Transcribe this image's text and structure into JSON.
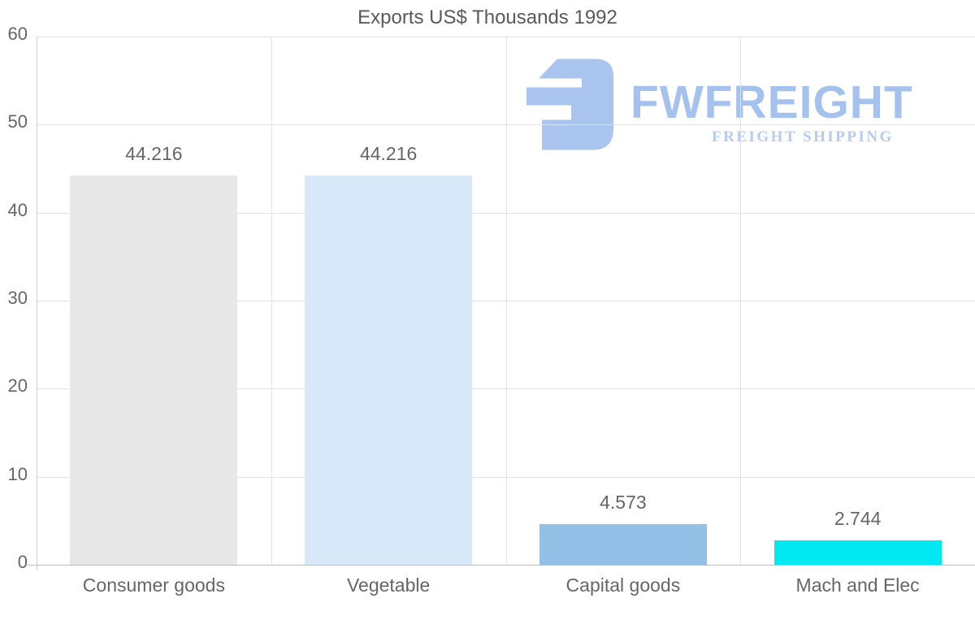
{
  "chart_data": {
    "type": "bar",
    "title": "Exports US$ Thousands 1992",
    "categories": [
      "Consumer goods",
      "Vegetable",
      "Capital goods",
      "Mach and Elec"
    ],
    "values": [
      44.216,
      44.216,
      4.573,
      2.744
    ],
    "value_labels": [
      "44.216",
      "44.216",
      "4.573",
      "2.744"
    ],
    "bar_colors": [
      "#e7e7e7",
      "#d9e8f8",
      "#93c0e7",
      "#00e8f2"
    ],
    "xlabel": "",
    "ylabel": "",
    "ylim": [
      0,
      60
    ],
    "yticks": [
      0,
      10,
      20,
      30,
      40,
      50,
      60
    ],
    "grid": "horizontal and vertical light gray",
    "legend_position": "none"
  },
  "watermark": {
    "brand": "FWFREIGHT",
    "tagline": "FREIGHT SHIPPING",
    "icon": "fwfreight-logo-icon",
    "icon_color": "#a9c4ee",
    "brand_color": "#a5c1ee",
    "tagline_color": "#b7cbf1"
  }
}
